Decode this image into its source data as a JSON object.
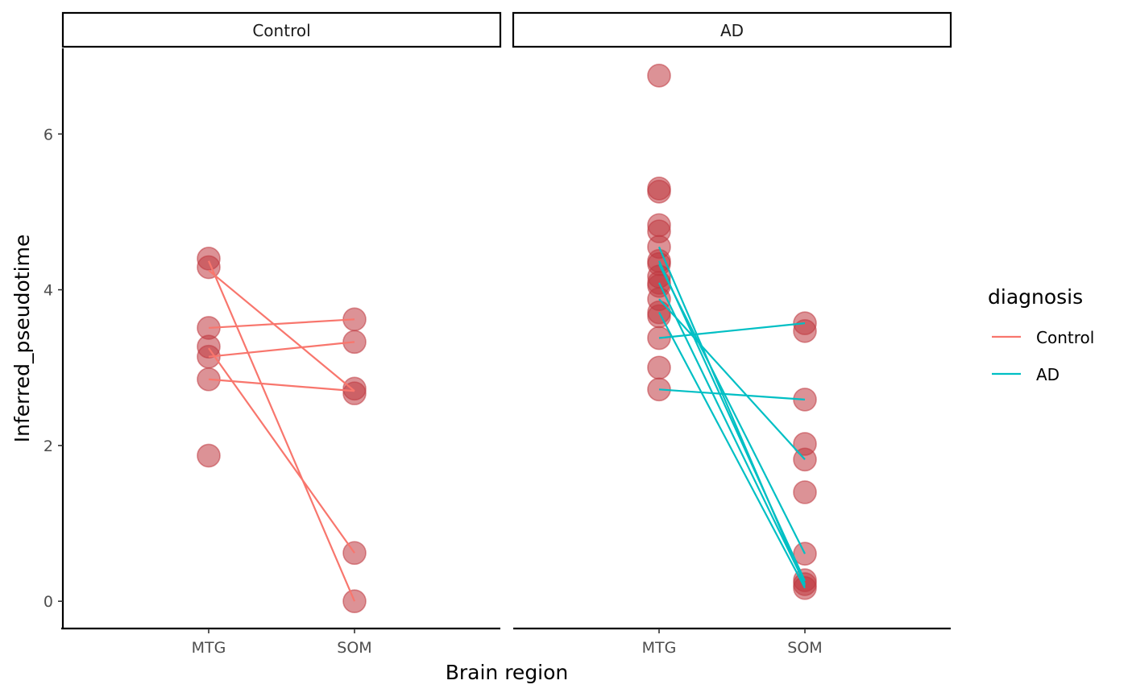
{
  "chart_data": {
    "type": "scatter",
    "title": "",
    "xlabel": "Brain region",
    "ylabel": "Inferred_pseudotime",
    "ylim": [
      -0.35,
      7.1
    ],
    "yticks": [
      0,
      2,
      4,
      6
    ],
    "categories": [
      "MTG",
      "SOM"
    ],
    "legend": {
      "title": "diagnosis",
      "position": "right",
      "entries": [
        {
          "label": "Control",
          "color": "#F8766D"
        },
        {
          "label": "AD",
          "color": "#00BFC4"
        }
      ]
    },
    "point_color": "#C0393F",
    "panels": [
      {
        "label": "Control",
        "line_color": "#F8766D",
        "points": {
          "MTG": [
            4.4,
            4.29,
            3.51,
            3.27,
            3.14,
            2.85,
            1.87
          ],
          "SOM": [
            3.62,
            3.33,
            2.73,
            2.67,
            0.62,
            0.0
          ]
        },
        "pairs": [
          {
            "MTG": 4.37,
            "SOM": 0.0
          },
          {
            "MTG": 4.25,
            "SOM": 2.7
          },
          {
            "MTG": 3.51,
            "SOM": 3.62
          },
          {
            "MTG": 3.14,
            "SOM": 3.33
          },
          {
            "MTG": 3.25,
            "SOM": 0.62
          },
          {
            "MTG": 2.85,
            "SOM": 2.7
          }
        ]
      },
      {
        "label": "AD",
        "line_color": "#00BFC4",
        "points": {
          "MTG": [
            6.75,
            5.3,
            5.26,
            4.83,
            4.75,
            4.55,
            4.37,
            4.33,
            4.17,
            4.09,
            4.05,
            3.88,
            3.71,
            3.66,
            3.38,
            3.0,
            2.72
          ],
          "SOM": [
            3.57,
            3.47,
            2.59,
            2.02,
            1.82,
            1.4,
            0.61,
            0.27,
            0.22,
            0.17
          ]
        },
        "pairs": [
          {
            "MTG": 4.55,
            "SOM": 0.2
          },
          {
            "MTG": 4.37,
            "SOM": 0.26
          },
          {
            "MTG": 4.33,
            "SOM": 0.61
          },
          {
            "MTG": 4.09,
            "SOM": 0.22
          },
          {
            "MTG": 3.88,
            "SOM": 1.82
          },
          {
            "MTG": 3.71,
            "SOM": 0.17
          },
          {
            "MTG": 3.38,
            "SOM": 3.57
          },
          {
            "MTG": 2.72,
            "SOM": 2.59
          }
        ]
      }
    ]
  }
}
